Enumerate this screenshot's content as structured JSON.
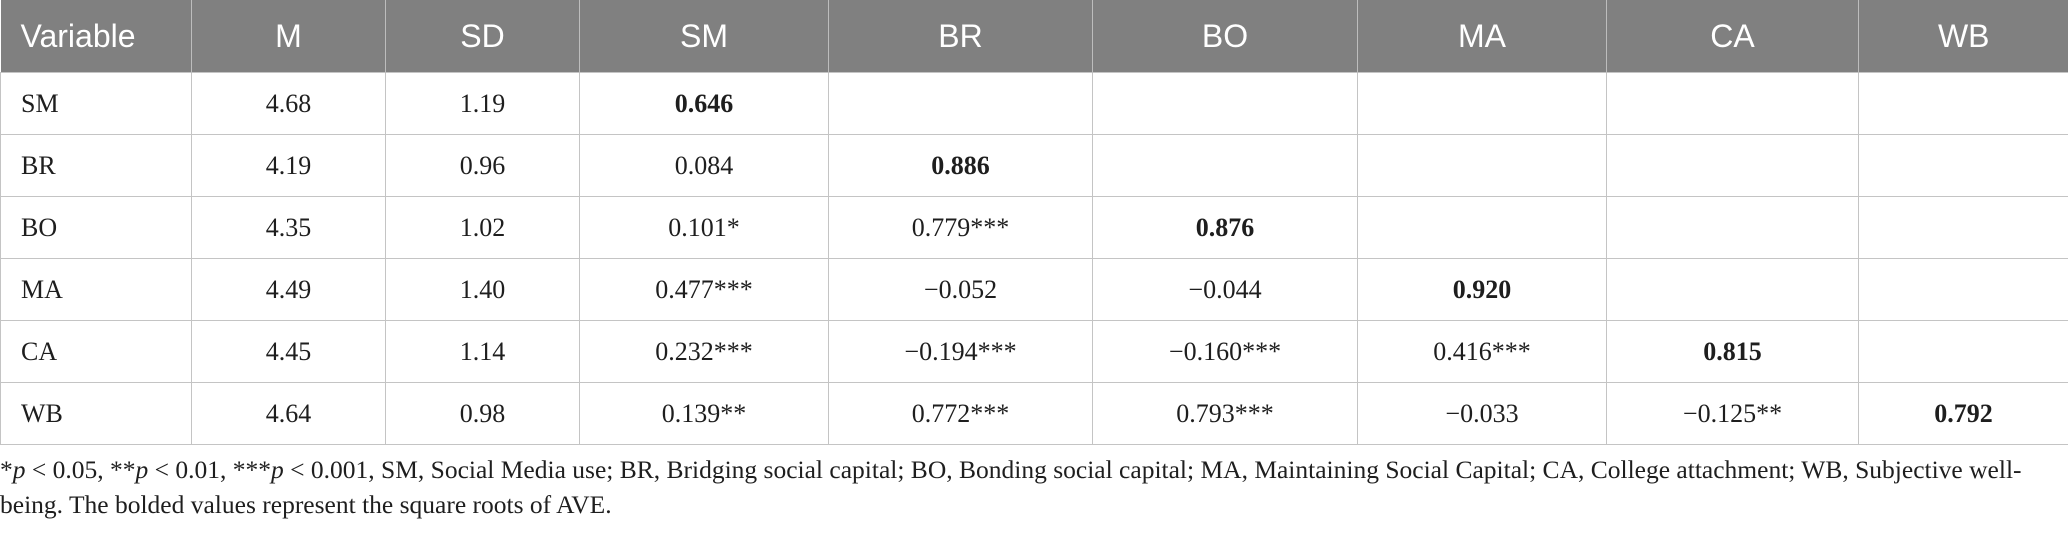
{
  "table": {
    "headers": [
      "Variable",
      "M",
      "SD",
      "SM",
      "BR",
      "BO",
      "MA",
      "CA",
      "WB"
    ],
    "rows": [
      {
        "cells": [
          "SM",
          "4.68",
          "1.19",
          "0.646",
          "",
          "",
          "",
          "",
          ""
        ],
        "bold_index": 3
      },
      {
        "cells": [
          "BR",
          "4.19",
          "0.96",
          "0.084",
          "0.886",
          "",
          "",
          "",
          ""
        ],
        "bold_index": 4
      },
      {
        "cells": [
          "BO",
          "4.35",
          "1.02",
          "0.101*",
          "0.779***",
          "0.876",
          "",
          "",
          ""
        ],
        "bold_index": 5
      },
      {
        "cells": [
          "MA",
          "4.49",
          "1.40",
          "0.477***",
          "−0.052",
          "−0.044",
          "0.920",
          "",
          ""
        ],
        "bold_index": 6
      },
      {
        "cells": [
          "CA",
          "4.45",
          "1.14",
          "0.232***",
          "−0.194***",
          "−0.160***",
          "0.416***",
          "0.815",
          ""
        ],
        "bold_index": 7
      },
      {
        "cells": [
          "WB",
          "4.64",
          "0.98",
          "0.139**",
          "0.772***",
          "0.793***",
          "−0.033",
          "−0.125**",
          "0.792"
        ],
        "bold_index": 8
      }
    ]
  },
  "note": {
    "p1": "p",
    "t1": " < 0.05, **",
    "p2": "p",
    "t2": " < 0.01, ***",
    "p3": "p",
    "t3": " < 0.001, SM, Social Media use; BR, Bridging social capital; BO, Bonding social capital; MA, Maintaining Social Capital; CA, College attachment; WB, Subjective well-being. The bolded values represent the square roots of AVE.",
    "lead": "*"
  },
  "colors": {
    "header_bg": "#808080",
    "header_text": "#ffffff",
    "grid": "#c4c4c4"
  }
}
